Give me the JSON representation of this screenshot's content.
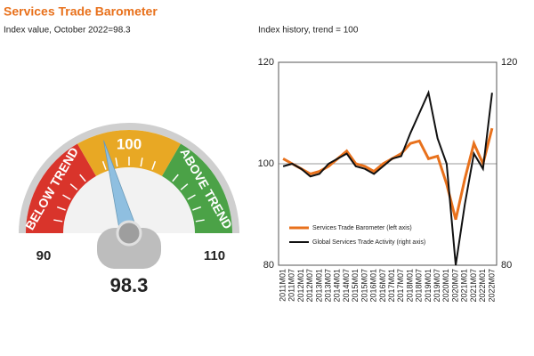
{
  "chart_data": [
    {
      "type": "gauge",
      "title": "Services Trade Barometer",
      "subtitle": "Index value, October 2022=98.3",
      "value": 98.3,
      "range": [
        90,
        110
      ],
      "ticks": [
        90,
        110
      ],
      "bands": [
        {
          "label": "BELOW TREND",
          "color": "#d9342b"
        },
        {
          "label": "100",
          "color": "#e8a824"
        },
        {
          "label": "ABOVE TREND",
          "color": "#4ba247"
        }
      ],
      "needle_color": "#8fbfe0"
    },
    {
      "type": "line",
      "title": "Index history, trend = 100",
      "categories": [
        "2011M01",
        "2011M07",
        "2012M01",
        "2012M07",
        "2013M01",
        "2013M07",
        "2014M01",
        "2014M07",
        "2015M01",
        "2015M07",
        "2016M01",
        "2016M07",
        "2017M01",
        "2017M07",
        "2018M01",
        "2018M07",
        "2019M01",
        "2019M07",
        "2020M01",
        "2020M07",
        "2021M01",
        "2021M07",
        "2022M01",
        "2022M07"
      ],
      "series": [
        {
          "name": "Services Trade Barometer (left axis)",
          "color": "#e8711c",
          "values": [
            101,
            100,
            99,
            98,
            98.5,
            99.5,
            101,
            102.5,
            100,
            99.5,
            98.5,
            100,
            101,
            102,
            104,
            104.5,
            101,
            101.5,
            96,
            89,
            97,
            104,
            100,
            107
          ]
        },
        {
          "name": "Global Services Trade Activity (right axis)",
          "color": "#111111",
          "axis": "y2",
          "values": [
            99.5,
            100,
            99,
            97.5,
            98,
            100,
            101,
            102,
            99.5,
            99,
            98,
            99.5,
            101,
            101.5,
            106,
            110,
            114,
            105,
            100,
            80,
            92,
            102,
            99,
            114
          ]
        }
      ],
      "ylim": [
        80,
        120
      ],
      "yticks": [
        80,
        100,
        120
      ],
      "y2lim": [
        80,
        120
      ],
      "y2ticks": [
        80,
        120
      ],
      "grid": true,
      "legend": "lower left"
    }
  ]
}
